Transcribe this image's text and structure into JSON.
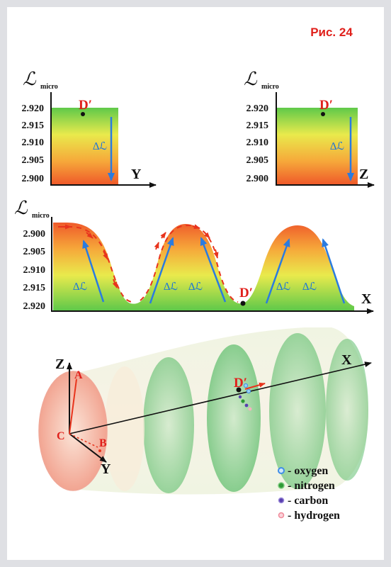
{
  "figure_label": "Рис. 24",
  "axis_symbol": "ℒ",
  "axis_subscript": "micro",
  "delta_label": "∆ℒ",
  "point_label": "D′",
  "top_left_panel": {
    "y_ticks": [
      "2.920",
      "2.915",
      "2.910",
      "2.905",
      "2.900"
    ],
    "x_axis": "Y"
  },
  "top_right_panel": {
    "y_ticks": [
      "2.920",
      "2.915",
      "2.910",
      "2.905",
      "2.900"
    ],
    "x_axis": "Z"
  },
  "wave_panel": {
    "y_ticks": [
      "2.900",
      "2.905",
      "2.910",
      "2.915",
      "2.920"
    ],
    "x_axis": "X"
  },
  "cylinder": {
    "axes": {
      "z": "Z",
      "x": "X",
      "y": "Y"
    },
    "points": {
      "a": "A",
      "b": "B",
      "c": "C"
    }
  },
  "legend": [
    {
      "label": "- oxygen",
      "color": "#3f8ee8"
    },
    {
      "label": "- nitrogen",
      "color": "#2f9a35"
    },
    {
      "label": "- carbon",
      "color": "#5a3fb0"
    },
    {
      "label": "- hydrogen",
      "color": "#f08a9a"
    }
  ]
}
